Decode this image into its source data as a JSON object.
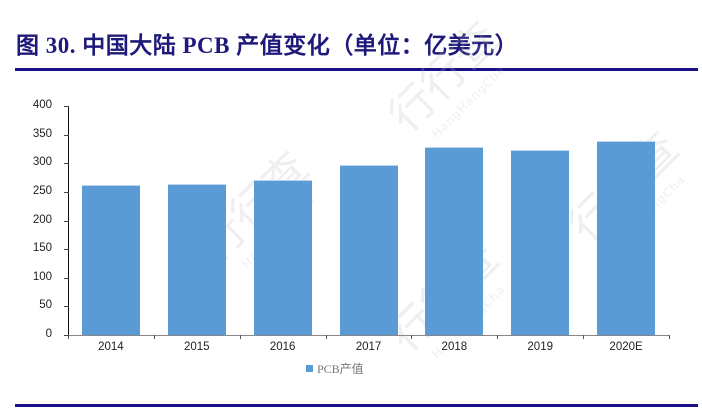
{
  "header": {
    "title": "图 30. 中国大陆 PCB 产值变化（单位：亿美元）"
  },
  "watermark": {
    "text": "行行查",
    "subtext": "HangHangCha"
  },
  "colors": {
    "bar": "#5b9bd5",
    "title": "#1f1a7a",
    "rule": "#1a0f8a"
  },
  "chart_data": {
    "type": "bar",
    "title": "中国大陆 PCB 产值变化（单位：亿美元）",
    "categories": [
      "2014",
      "2015",
      "2016",
      "2017",
      "2018",
      "2019",
      "2020E"
    ],
    "series": [
      {
        "name": "PCB产值",
        "values": [
          262,
          263,
          271,
          297,
          328,
          324,
          338
        ]
      }
    ],
    "xlabel": "",
    "ylabel": "",
    "ylim": [
      0,
      400
    ],
    "yticks": [
      "0",
      "50",
      "100",
      "150",
      "200",
      "250",
      "300",
      "350",
      "400"
    ],
    "grid": false,
    "legend_position": "bottom"
  }
}
